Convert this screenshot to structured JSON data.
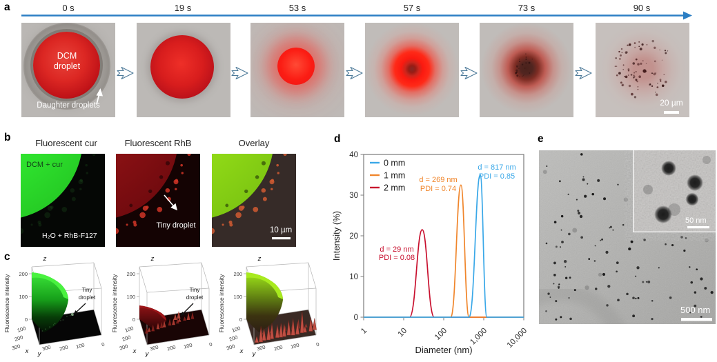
{
  "panel_a": {
    "label": "a",
    "times": [
      "0 s",
      "19 s",
      "53 s",
      "57 s",
      "73 s",
      "90 s"
    ],
    "droplet_label_line1": "DCM",
    "droplet_label_line2": "droplet",
    "daughter_label": "Daughter droplets",
    "scale_bar": "20 µm"
  },
  "panel_b": {
    "label": "b",
    "titles": [
      "Fluorescent cur",
      "Fluorescent RhB",
      "Overlay"
    ],
    "top_phase": "DCM + cur",
    "bottom_phase": "H₂O + RhB-F127",
    "tiny_droplet": "Tiny droplet",
    "scale_bar": "10 µm"
  },
  "panel_c": {
    "label": "c",
    "z_axis_label": "Fluorescence intensity",
    "axis_letters": {
      "x": "x",
      "y": "y",
      "z": "z"
    },
    "z_ticks": [
      "200",
      "100",
      "0"
    ],
    "x_ticks": [
      "100",
      "200",
      "300"
    ],
    "y_ticks": [
      "300",
      "200",
      "100",
      "0"
    ],
    "tiny_droplet_line1": "Tiny",
    "tiny_droplet_line2": "droplet"
  },
  "panel_d": {
    "label": "d",
    "ylabel": "Intensity (%)",
    "xlabel": "Diameter (nm)",
    "y_ticks": [
      "40",
      "30",
      "20",
      "10",
      "0"
    ],
    "x_ticks": [
      "1",
      "10",
      "100",
      "1,000",
      "10,000"
    ],
    "legend": [
      {
        "label": "0 mm",
        "color": "#3aa8e8"
      },
      {
        "label": "1 mm",
        "color": "#f0862c"
      },
      {
        "label": "2 mm",
        "color": "#c8102e"
      }
    ],
    "annotations": [
      {
        "line1": "d = 817 nm",
        "line2": "PDI = 0.85",
        "color": "#3aa8e8"
      },
      {
        "line1": "d = 269 nm",
        "line2": "PDI = 0.74",
        "color": "#f0862c"
      },
      {
        "line1": "d = 29 nm",
        "line2": "PDI = 0.08",
        "color": "#c8102e"
      }
    ]
  },
  "panel_e": {
    "label": "e",
    "scale_bar_main": "500 nm",
    "scale_bar_inset": "50 nm"
  },
  "chart_data": {
    "type": "line",
    "xlabel": "Diameter (nm)",
    "ylabel": "Intensity (%)",
    "x_scale": "log",
    "xlim": [
      1,
      10000
    ],
    "ylim": [
      0,
      40
    ],
    "x_tick_labels": [
      "1",
      "10",
      "100",
      "1,000",
      "10,000"
    ],
    "y_ticks": [
      0,
      10,
      20,
      30,
      40
    ],
    "grid": false,
    "legend_position": "upper left",
    "series": [
      {
        "name": "0 mm",
        "color": "#3aa8e8",
        "peak_diameter_nm": 817,
        "pdi": 0.85,
        "peak_intensity_pct": 35,
        "base_nm": [
          430,
          1200
        ]
      },
      {
        "name": "1 mm",
        "color": "#f0862c",
        "peak_diameter_nm": 269,
        "pdi": 0.74,
        "peak_intensity_pct": 32.5,
        "base_nm": [
          150,
          430
        ]
      },
      {
        "name": "2 mm",
        "color": "#c8102e",
        "peak_diameter_nm": 29,
        "pdi": 0.08,
        "peak_intensity_pct": 21.5,
        "base_nm": [
          14,
          58
        ]
      }
    ]
  }
}
